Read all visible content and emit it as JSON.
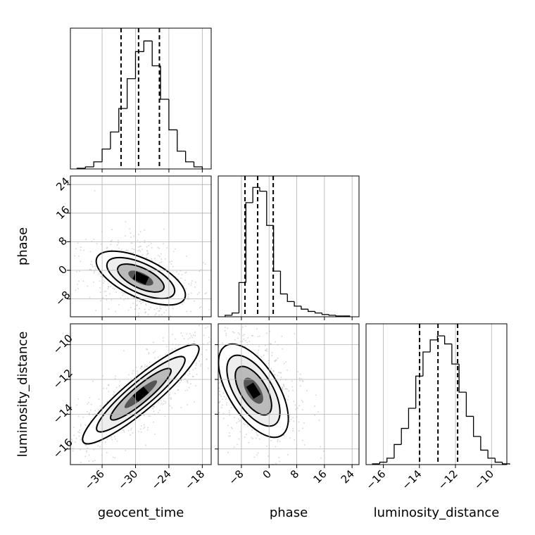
{
  "chart_data": [
    {
      "type": "histogram",
      "grid": true,
      "color": "#000000",
      "bins": [
        -40.5,
        -39,
        -37.5,
        -36,
        -34.5,
        -33,
        -31.5,
        -30,
        -28.5,
        -27,
        -25.5,
        -24,
        -22.5,
        -21,
        -19.5,
        -18
      ],
      "counts": [
        1,
        3,
        10,
        28,
        52,
        85,
        127,
        165,
        180,
        145,
        98,
        55,
        25,
        10,
        3
      ],
      "quantiles": [
        -32.6,
        -29.45,
        -25.7
      ],
      "xlim": [
        -41.7,
        -16.4
      ],
      "ylim": [
        0,
        198
      ],
      "xticks": [
        {
          "value": -36,
          "label": "−36"
        },
        {
          "value": -30,
          "label": "−30"
        },
        {
          "value": -24,
          "label": "−24"
        },
        {
          "value": -18,
          "label": "−18"
        }
      ]
    },
    {
      "type": "hist2d",
      "grid": true,
      "ylabel": "phase",
      "xlim": [
        -41.7,
        -16.4
      ],
      "ylim": [
        -13,
        26.4
      ],
      "xticks": [
        {
          "value": -36,
          "label": "−36"
        },
        {
          "value": -30,
          "label": "−30"
        },
        {
          "value": -24,
          "label": "−24"
        },
        {
          "value": -18,
          "label": "−18"
        }
      ],
      "yticks": [
        {
          "value": -8,
          "label": "−8"
        },
        0,
        8,
        16,
        24
      ]
    },
    {
      "type": "histogram",
      "grid": true,
      "color": "#000000",
      "bins": [
        -12.7,
        -10.7,
        -8.7,
        -6.7,
        -4.7,
        -2.7,
        -0.7,
        1.3,
        3.3,
        5.3,
        7.3,
        9.3,
        11.3,
        13.3,
        15.3,
        17.3,
        19.3,
        21.3,
        23.3
      ],
      "counts": [
        2,
        5,
        45,
        150,
        170,
        165,
        120,
        60,
        30,
        20,
        14,
        10,
        7,
        5,
        3,
        2,
        1,
        1
      ],
      "quantiles": [
        -6.96,
        -3.3,
        1.2
      ],
      "xlim": [
        -14.7,
        26
      ],
      "ylim": [
        0,
        185
      ],
      "xticks": [
        {
          "value": -8,
          "label": "−8"
        },
        0,
        8,
        16,
        24
      ]
    },
    {
      "type": "hist2d",
      "grid": true,
      "xlabel": "geocent_time",
      "ylabel": "luminosity_distance",
      "xlim": [
        -41.7,
        -16.4
      ],
      "ylim": [
        -16.9,
        -8.8
      ],
      "xticks": [
        {
          "value": -36,
          "label": "−36"
        },
        {
          "value": -30,
          "label": "−30"
        },
        {
          "value": -24,
          "label": "−24"
        },
        {
          "value": -18,
          "label": "−18"
        }
      ],
      "yticks": [
        {
          "value": -16,
          "label": "−16"
        },
        {
          "value": -14,
          "label": "−14"
        },
        {
          "value": -12,
          "label": "−12"
        },
        {
          "value": -10,
          "label": "−10"
        }
      ]
    },
    {
      "type": "hist2d",
      "grid": true,
      "xlabel": "phase",
      "xlim": [
        -14.7,
        26
      ],
      "ylim": [
        -16.9,
        -8.8
      ],
      "xticks": [
        {
          "value": -8,
          "label": "−8"
        },
        0,
        8,
        16,
        24
      ],
      "yticks": [
        {
          "value": -16,
          "label": "−16"
        },
        {
          "value": -14,
          "label": "−14"
        },
        {
          "value": -12,
          "label": "−12"
        },
        {
          "value": -10,
          "label": "−10"
        }
      ]
    },
    {
      "type": "histogram",
      "grid": true,
      "color": "#000000",
      "xlabel": "luminosity_distance",
      "bins": [
        -16.6,
        -16.2,
        -15.8,
        -15.4,
        -15,
        -14.6,
        -14.2,
        -13.8,
        -13.4,
        -13,
        -12.6,
        -12.2,
        -11.8,
        -11.4,
        -11,
        -10.6,
        -10.2,
        -9.8,
        -9.4,
        -9
      ],
      "counts": [
        1,
        3,
        8,
        25,
        45,
        70,
        110,
        140,
        155,
        160,
        150,
        125,
        90,
        60,
        35,
        18,
        8,
        3,
        1
      ],
      "quantiles": [
        -13.99,
        -12.97,
        -11.88
      ],
      "xlim": [
        -16.96,
        -9.15
      ],
      "ylim": [
        0,
        175
      ],
      "xticks": [
        {
          "value": -16,
          "label": "−16"
        },
        {
          "value": -14,
          "label": "−14"
        },
        {
          "value": -12,
          "label": "−12"
        },
        {
          "value": -10,
          "label": "−10"
        }
      ]
    }
  ]
}
